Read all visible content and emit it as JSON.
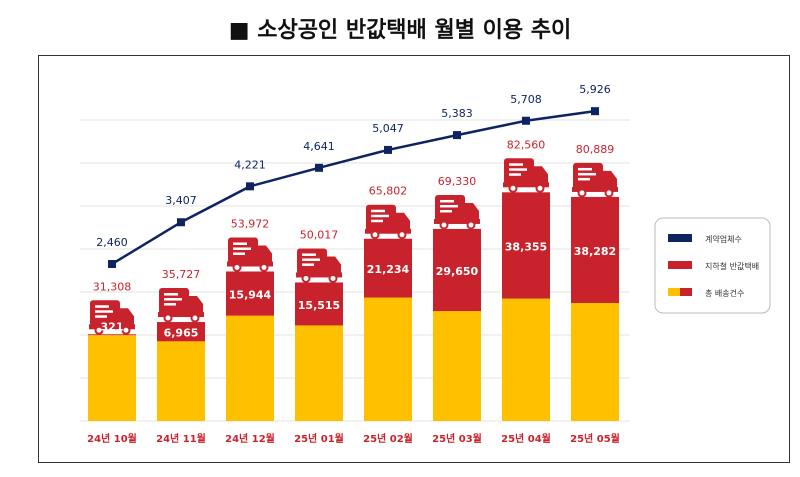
{
  "title": "■ 소상공인 반값택배 월별 이용 추이",
  "chart_data": {
    "type": "bar",
    "categories": [
      "24년 10월",
      "24년 11월",
      "24년 12월",
      "25년 01월",
      "25년 02월",
      "25년 03월",
      "25년 04월",
      "25년 05월"
    ],
    "series": [
      {
        "name": "총 배송건수",
        "type": "bar",
        "values": [
          31308,
          35727,
          53972,
          50017,
          65802,
          69330,
          82560,
          80889
        ],
        "color": "#FFC000"
      },
      {
        "name": "지하철 반값택배",
        "type": "bar",
        "values": [
          321,
          6965,
          15944,
          15515,
          21234,
          29650,
          38355,
          38282
        ],
        "color": "#C8232C"
      },
      {
        "name": "계약업체수",
        "type": "line",
        "values": [
          2460,
          3407,
          4221,
          4641,
          5047,
          5383,
          5708,
          5926
        ],
        "color": "#0E2461"
      }
    ],
    "grid": true,
    "legend_position": "right"
  }
}
